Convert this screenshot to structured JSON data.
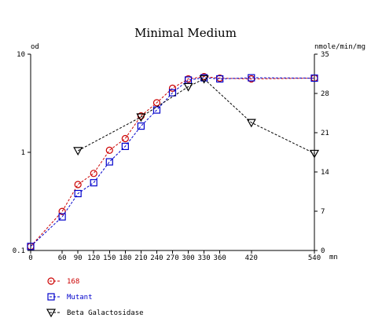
{
  "chart_data": {
    "type": "line",
    "title": "Minimal Medium",
    "left_axis_label": "od",
    "right_axis_label": "nmole/min/mg",
    "x_unit_label": "mn",
    "x_ticks": [
      "0",
      "60",
      "90",
      "120",
      "150",
      "180",
      "210",
      "240",
      "270",
      "300",
      "330",
      "360",
      "420",
      "540"
    ],
    "xlim": [
      0,
      540
    ],
    "left_ticks": [
      "0.1",
      "1",
      "10"
    ],
    "left_scale": "log",
    "ylim_left": [
      0.1,
      10
    ],
    "right_ticks": [
      "0",
      "7",
      "14",
      "21",
      "28",
      "35"
    ],
    "ylim_right": [
      0,
      35
    ],
    "grid": false,
    "legend_position": "bottom-left",
    "series": [
      {
        "name": "168",
        "axis": "left",
        "color": "#cc0000",
        "marker": "circle",
        "line_style": "dashed",
        "x": [
          0,
          60,
          90,
          120,
          150,
          180,
          210,
          240,
          270,
          300,
          330,
          360,
          420,
          540
        ],
        "y": [
          0.11,
          0.25,
          0.47,
          0.61,
          1.05,
          1.38,
          2.35,
          3.2,
          4.5,
          5.6,
          5.9,
          5.7,
          5.6,
          5.7
        ]
      },
      {
        "name": "Mutant",
        "axis": "left",
        "color": "#0000cc",
        "marker": "square",
        "line_style": "dashed",
        "x": [
          0,
          60,
          90,
          120,
          150,
          180,
          210,
          240,
          270,
          300,
          330,
          360,
          420,
          540
        ],
        "y": [
          0.11,
          0.22,
          0.38,
          0.49,
          0.8,
          1.15,
          1.85,
          2.7,
          4.05,
          5.45,
          5.75,
          5.6,
          5.75,
          5.7
        ]
      },
      {
        "name": "Beta Galactosidase",
        "axis": "right",
        "color": "#000000",
        "marker": "triangle-down",
        "line_style": "dashed",
        "x": [
          90,
          210,
          300,
          330,
          420,
          540
        ],
        "y": [
          17.8,
          23.8,
          29.2,
          30.6,
          22.8,
          17.3
        ]
      }
    ]
  }
}
